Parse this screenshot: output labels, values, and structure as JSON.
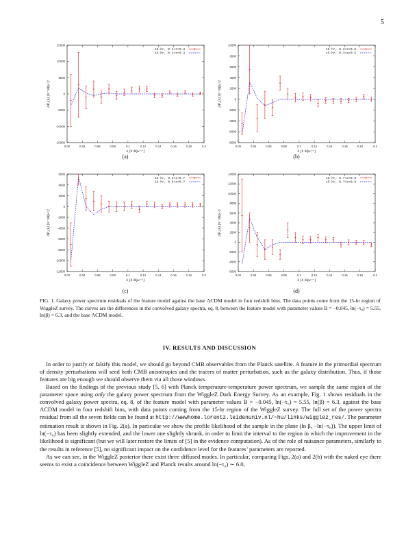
{
  "page_number": "5",
  "panels": [
    {
      "label": "(a)",
      "legend": [
        "15-hr, 0.1<z<0.3",
        "15-hr, 0.1<z<0.3"
      ]
    },
    {
      "label": "(b)",
      "legend": [
        "15-hr, 0.3<z<0.5",
        "15-hr, 0.3<z<0.5"
      ]
    },
    {
      "label": "(c)",
      "legend": [
        "15-hr, 0.5<z<0.7",
        "15-hr, 0.5<z<0.7"
      ]
    },
    {
      "label": "(d)",
      "legend": [
        "15-hr, 0.7<z<0.9",
        "15-hr, 0.7<z<0.9"
      ]
    }
  ],
  "chart_data": [
    {
      "type": "scatter",
      "xlabel": "k [h Mpc⁻¹]",
      "ylabel": "ΔP₀(k) [h⁻³Mpc³]",
      "xlim": [
        0.02,
        0.2
      ],
      "ylim": [
        -15000,
        15000
      ],
      "xticks": [
        "0.02",
        "0.04",
        "0.06",
        "0.08",
        "0.1",
        "0.12",
        "0.14",
        "0.16",
        "0.18",
        "0.2"
      ],
      "yticks": [
        "-15000",
        "-10000",
        "-5000",
        "0",
        "5000",
        "10000",
        "15000"
      ],
      "colors": {
        "data": "#d62020",
        "model": "#2020d0"
      },
      "series": [
        {
          "name": "15-hr, 0.1<z<0.3",
          "style": "points-with-errorbars",
          "x": [
            0.025,
            0.035,
            0.045,
            0.055,
            0.065,
            0.075,
            0.085,
            0.095,
            0.105,
            0.115,
            0.125,
            0.135,
            0.145,
            0.155,
            0.165,
            0.175,
            0.185,
            0.195
          ],
          "y": [
            -2000,
            2800,
            -1000,
            1500,
            -1000,
            1500,
            -500,
            500,
            1200,
            1500,
            1500,
            -500,
            -500,
            500,
            -200,
            500,
            -200,
            200
          ],
          "err": [
            8000,
            10000,
            3500,
            2500,
            2000,
            1500,
            1200,
            1000,
            900,
            900,
            800,
            700,
            600,
            500,
            500,
            500,
            500,
            400
          ]
        },
        {
          "name": "15-hr, 0.1<z<0.3",
          "style": "dashed-line",
          "x": [
            0.025,
            0.035,
            0.045,
            0.055,
            0.065,
            0.075,
            0.085,
            0.095,
            0.105,
            0.115,
            0.125,
            0.135,
            0.145,
            0.155,
            0.165,
            0.175,
            0.185,
            0.195
          ],
          "y": [
            -3500,
            1800,
            300,
            -500,
            0,
            300,
            0,
            0,
            0,
            0,
            0,
            0,
            0,
            0,
            0,
            0,
            0,
            0
          ]
        }
      ]
    },
    {
      "type": "scatter",
      "xlabel": "k [h Mpc⁻¹]",
      "ylabel": "ΔP₀(k) [h⁻³Mpc³]",
      "xlim": [
        0.02,
        0.2
      ],
      "ylim": [
        -8000,
        10000
      ],
      "xticks": [
        "0.02",
        "0.04",
        "0.06",
        "0.08",
        "0.1",
        "0.12",
        "0.14",
        "0.16",
        "0.18",
        "0.2"
      ],
      "yticks": [
        "-8000",
        "-6000",
        "-4000",
        "-2000",
        "0",
        "2000",
        "4000",
        "6000",
        "8000",
        "10000"
      ],
      "colors": {
        "data": "#d62020",
        "model": "#2020d0"
      },
      "series": [
        {
          "name": "15-hr, 0.3<z<0.5",
          "style": "points-with-errorbars",
          "x": [
            0.025,
            0.035,
            0.045,
            0.055,
            0.065,
            0.075,
            0.085,
            0.095,
            0.105,
            0.115,
            0.125,
            0.135,
            0.145,
            0.155,
            0.165,
            0.175,
            0.185,
            0.195
          ],
          "y": [
            -4500,
            5500,
            -3500,
            -1000,
            -1500,
            3000,
            1000,
            300,
            500,
            300,
            -700,
            -200,
            -300,
            -300,
            -200,
            0,
            500,
            0
          ],
          "err": [
            2000,
            4500,
            2500,
            2500,
            1500,
            1300,
            1000,
            800,
            700,
            600,
            600,
            500,
            500,
            500,
            400,
            400,
            400,
            400
          ]
        },
        {
          "name": "15-hr, 0.3<z<0.5",
          "style": "dashed-line",
          "x": [
            0.025,
            0.035,
            0.045,
            0.055,
            0.065,
            0.075,
            0.085,
            0.095,
            0.105,
            0.115,
            0.125,
            0.135,
            0.145,
            0.155,
            0.165,
            0.175,
            0.185,
            0.195
          ],
          "y": [
            -6500,
            3200,
            200,
            -1200,
            -600,
            0,
            0,
            0,
            0,
            0,
            0,
            0,
            0,
            0,
            0,
            0,
            0,
            0
          ]
        }
      ]
    },
    {
      "type": "scatter",
      "xlabel": "k [h Mpc⁻¹]",
      "ylabel": "ΔP₀(k) [h⁻³Mpc³]",
      "xlim": [
        0.02,
        0.2
      ],
      "ylim": [
        -12000,
        6000
      ],
      "xticks": [
        "0.02",
        "0.04",
        "0.06",
        "0.08",
        "0.1",
        "0.12",
        "0.14",
        "0.16",
        "0.18",
        "0.2"
      ],
      "yticks": [
        "-12000",
        "-10000",
        "-8000",
        "-6000",
        "-4000",
        "-2000",
        "0",
        "2000",
        "4000",
        "6000"
      ],
      "colors": {
        "data": "#d62020",
        "model": "#2020d0"
      },
      "series": [
        {
          "name": "15-hr, 0.5<z<0.7",
          "style": "points-with-errorbars",
          "x": [
            0.025,
            0.035,
            0.045,
            0.055,
            0.065,
            0.075,
            0.085,
            0.095,
            0.105,
            0.115,
            0.125,
            0.135,
            0.145,
            0.155,
            0.165,
            0.175,
            0.185,
            0.195
          ],
          "y": [
            -7000,
            5000,
            1500,
            1000,
            500,
            0,
            0,
            0,
            300,
            -500,
            500,
            300,
            0,
            300,
            300,
            300,
            300,
            300
          ],
          "err": [
            4000,
            1000,
            2200,
            1800,
            1500,
            1000,
            900,
            800,
            700,
            600,
            500,
            500,
            400,
            400,
            400,
            400,
            400,
            300
          ]
        },
        {
          "name": "15-hr, 0.5<z<0.7",
          "style": "dashed-line",
          "x": [
            0.025,
            0.035,
            0.045,
            0.055,
            0.065,
            0.075,
            0.085,
            0.095,
            0.105,
            0.115,
            0.125,
            0.135,
            0.145,
            0.155,
            0.165,
            0.175,
            0.185,
            0.195
          ],
          "y": [
            -10000,
            5500,
            0,
            -1500,
            -500,
            0,
            0,
            0,
            0,
            0,
            0,
            0,
            0,
            0,
            0,
            0,
            0,
            0
          ]
        }
      ]
    },
    {
      "type": "scatter",
      "xlabel": "k [h Mpc⁻¹]",
      "ylabel": "ΔP₀(k) [h⁻³Mpc³]",
      "xlim": [
        0.02,
        0.2
      ],
      "ylim": [
        -6000,
        14000
      ],
      "xticks": [
        "0.02",
        "0.04",
        "0.06",
        "0.08",
        "0.1",
        "0.12",
        "0.14",
        "0.16",
        "0.18",
        "0.2"
      ],
      "yticks": [
        "-6000",
        "-4000",
        "-2000",
        "0",
        "2000",
        "4000",
        "6000",
        "8000",
        "10000",
        "12000",
        "14000"
      ],
      "colors": {
        "data": "#d62020",
        "model": "#2020d0"
      },
      "series": [
        {
          "name": "15-hr, 0.7<z<0.9",
          "style": "points-with-errorbars",
          "x": [
            0.025,
            0.035,
            0.045,
            0.055,
            0.065,
            0.075,
            0.085,
            0.095,
            0.105,
            0.115,
            0.125,
            0.135,
            0.145,
            0.155,
            0.165,
            0.175,
            0.185,
            0.195
          ],
          "y": [
            5500,
            3000,
            -500,
            -1500,
            -1000,
            -2500,
            2500,
            1000,
            500,
            500,
            1000,
            500,
            500,
            -500,
            0,
            0,
            0,
            -500
          ],
          "err": [
            7500,
            3000,
            2500,
            2000,
            1500,
            1000,
            1500,
            1000,
            800,
            700,
            700,
            600,
            500,
            500,
            500,
            400,
            400,
            400
          ]
        },
        {
          "name": "15-hr, 0.7<z<0.9",
          "style": "dashed-line",
          "x": [
            0.025,
            0.035,
            0.045,
            0.055,
            0.065,
            0.075,
            0.085,
            0.095,
            0.105,
            0.115,
            0.125,
            0.135,
            0.145,
            0.155,
            0.165,
            0.175,
            0.185,
            0.195
          ],
          "y": [
            -4500,
            5000,
            1000,
            -1500,
            -500,
            0,
            0,
            0,
            0,
            0,
            0,
            0,
            0,
            0,
            0,
            0,
            0,
            0
          ]
        }
      ]
    }
  ],
  "caption": "FIG. 1.   Galaxy power spectrum residuals of the feature model against the base ΛCDM model in four redshift bins. The data points come from the 15-hr region of WiggleZ survey. The curves are the differences in the convolved galaxy spectra, eq. 8, between the feature model with parameter values B = −0.045, ln(−τ₀) = 5.55, ln(β) = 6.3, and the base ΛCDM model.",
  "section_title": "IV.   RESULTS AND DISCUSSION",
  "paragraphs": [
    "In order to justify or falsify this model, we should go beyond CMB observables from the Planck satellite. A feature in the primordial spectrum of density perturbations will seed both CMB anisotropies and the tracers of matter perturbation, such as the galaxy distribution. Thus, if those features are big enough we should observe them via all those windows.",
    "As we can see, in the WiggleZ posterior there exist three diffused modes. In particular, comparing Figs. 2(a) and 2(b) with the naked eye there seems to exist a coincidence between WiggleZ and Planck results around ln(−τ₀) ∼ 6.0,"
  ],
  "paragraph2": {
    "part1": "Based on the findings of the previous study [5, 6] with Planck temperature-temperature power spectrum, we sample the same region of the parameter space using ",
    "emph": "only",
    "part2": " the galaxy power spectrum from the WiggleZ Dark Energy Survey. As an example, Fig. 1 shows residuals in the convolved galaxy power spectra, eq. 8, of the feature model with parameter values B = −0.045, ln(−τ₀) = 5.55, ln(β) = 6.3, against the base ΛCDM model in four redshift bins, with data points coming from the 15-hr region of the WiggleZ survey. The full set of the power spectra residual from all the seven fields can be found at ",
    "url": "http://wwwhome.lorentz.leidenuniv.nl/~hu/links/wigglez_res/",
    "part3": ". The parameter estimation result is shown in Fig. 2(a). In particular we show the profile likelihood of the sample in the plane (ln β, −ln(−τ₀)). The upper limit of ln(−τ₀) has been slightly extended, and the lower one slightly shrunk, in order to limit the interval to the region in which the improvement in the likelihood is significant (but we will later restore the limits of [5] in the evidence computation). As of the role of nuisance parameters, similarly to the results in reference [5], no significant impact on the confidence level for the features’ parameters are reported."
  }
}
